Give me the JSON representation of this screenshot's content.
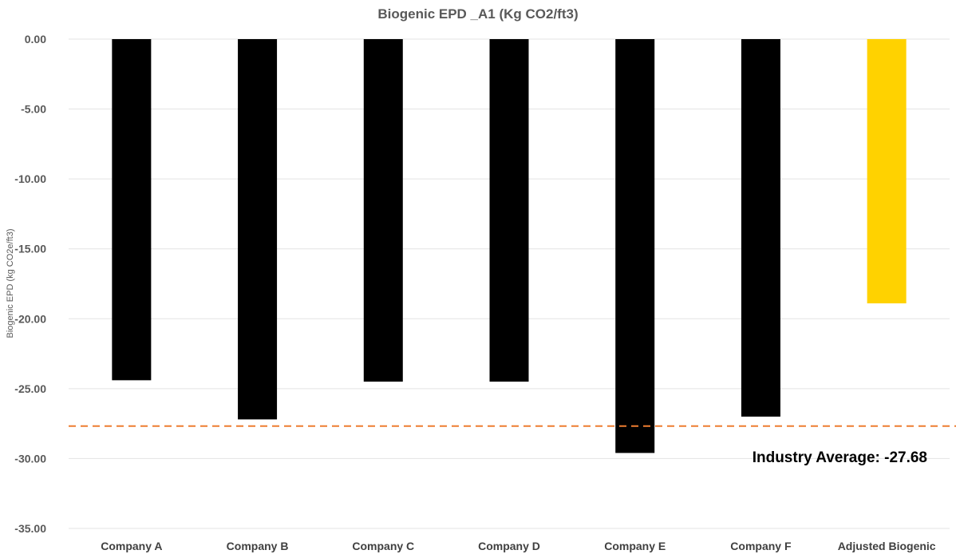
{
  "chart_data": {
    "type": "bar",
    "title": "Biogenic EPD _A1 (Kg CO2/ft3)",
    "xlabel": "",
    "ylabel": "Biogenic EPD (kg CO2e/ft3)",
    "ylim": [
      -35,
      0
    ],
    "yticks": [
      0,
      -5,
      -10,
      -15,
      -20,
      -25,
      -30,
      -35
    ],
    "ytick_labels": [
      "0.00",
      "-5.00",
      "-10.00",
      "-15.00",
      "-20.00",
      "-25.00",
      "-30.00",
      "-35.00"
    ],
    "categories": [
      "Company A",
      "Company B",
      "Company C",
      "Company D",
      "Company E",
      "Company F",
      "Adjusted Biogenic"
    ],
    "values": [
      -24.4,
      -27.2,
      -24.5,
      -24.5,
      -29.6,
      -27.0,
      -18.9
    ],
    "bar_colors": [
      "#000000",
      "#000000",
      "#000000",
      "#000000",
      "#000000",
      "#000000",
      "#FFD200"
    ],
    "grid": true,
    "reference_line": {
      "value": -27.68,
      "label": "Industry Average: -27.68",
      "color": "#ED7D31",
      "style": "dashed"
    }
  }
}
